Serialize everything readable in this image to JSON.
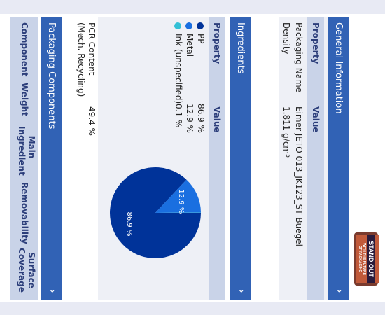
{
  "general": {
    "title": "General Information",
    "col_property": "Property",
    "col_value": "Value",
    "rows": [
      {
        "property": "Packaging Name",
        "value": "Eimer JETO 013_JK123_ST Buegel"
      },
      {
        "property": "Density",
        "value": "1.811 g/cm³"
      }
    ]
  },
  "product_image": {
    "text_lines": [
      "STAND OUT",
      "WITH THE FUTURE",
      "OF PACKAGING"
    ]
  },
  "ingredients": {
    "title": "Ingredients",
    "col_property": "Property",
    "col_value": "Value",
    "items": [
      {
        "name": "PP",
        "value": "86.9 %",
        "color": "#003399"
      },
      {
        "name": "Metal",
        "value": "12.9 %",
        "color": "#1a6fe0"
      },
      {
        "name": "Ink (unspecified)",
        "value": "0.1 %",
        "color": "#33c0d6"
      }
    ],
    "pcr_label": "PCR Content (Mech. Recycling)",
    "pcr_value": "49.4 %"
  },
  "chart_data": {
    "type": "pie",
    "categories": [
      "PP",
      "Metal",
      "Ink (unspecified)"
    ],
    "values": [
      86.9,
      12.9,
      0.1
    ],
    "labels": [
      "86.9 %",
      "12.9 %",
      ""
    ],
    "colors": [
      "#003399",
      "#1a6fe0",
      "#33c0d6"
    ]
  },
  "packaging": {
    "title": "Packaging Components",
    "columns": [
      "Component",
      "Weight",
      "Main Ingredient",
      "Removability",
      "Surface Coverage"
    ]
  },
  "icons": {
    "expand": "chevron-right-icon"
  }
}
